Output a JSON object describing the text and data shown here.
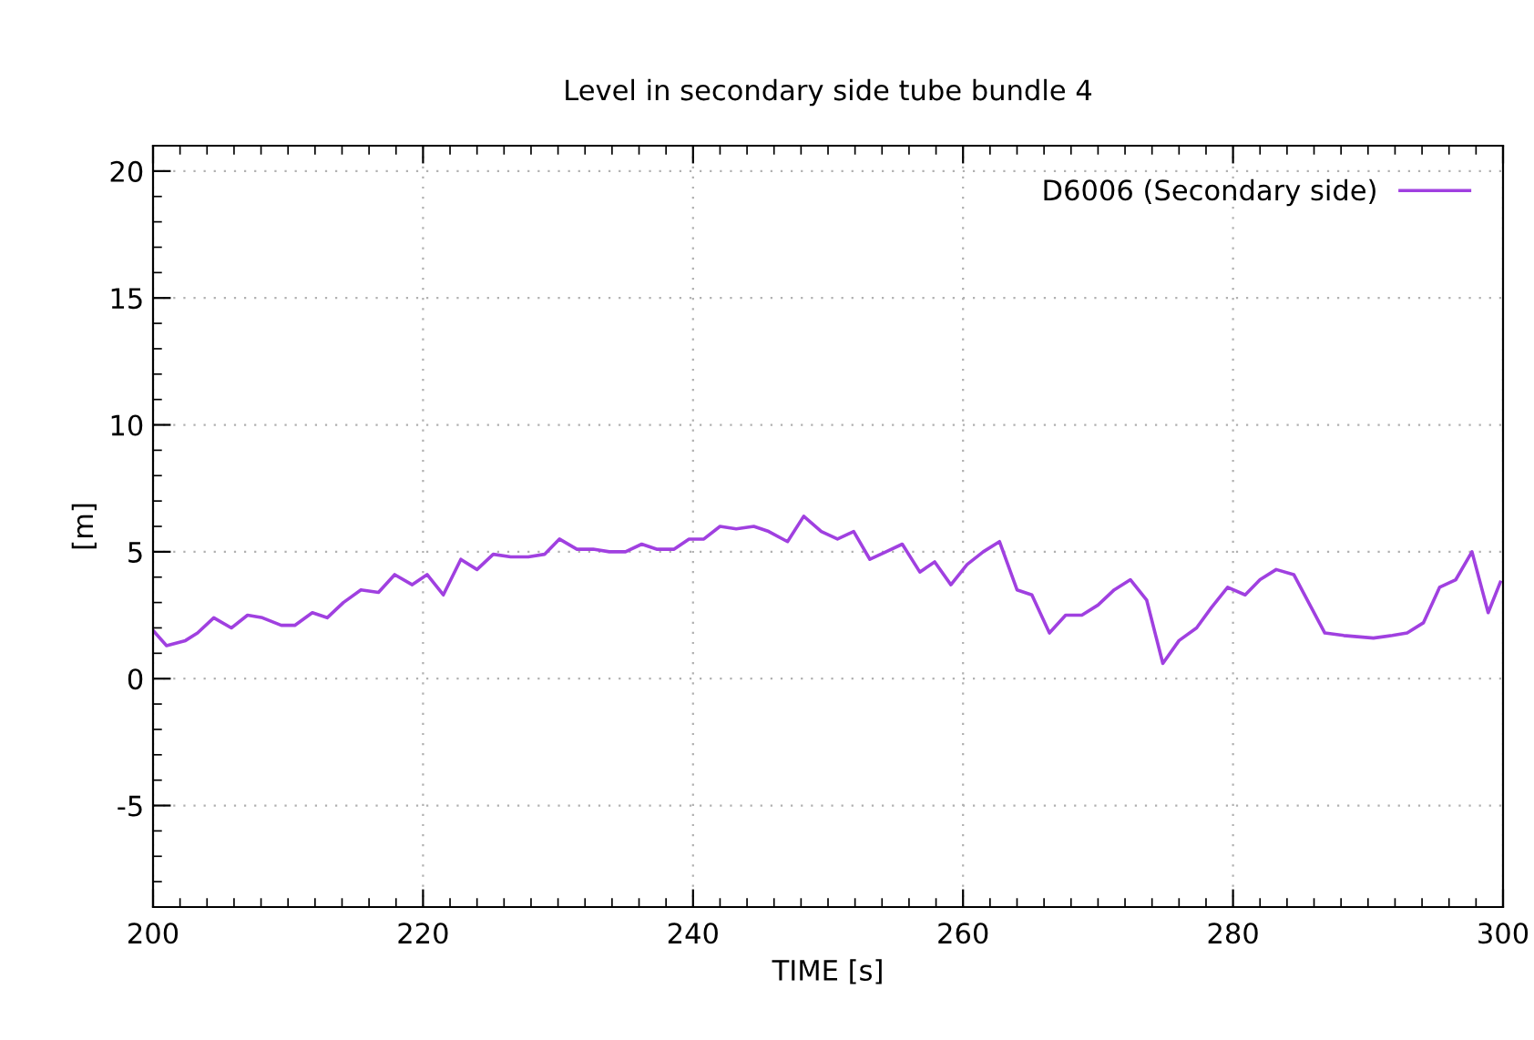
{
  "chart_data": {
    "type": "line",
    "title": "Level in secondary side tube bundle 4",
    "xlabel": "TIME [s]",
    "ylabel": "[m]",
    "xlim": [
      200,
      300
    ],
    "xticks": [
      200,
      220,
      240,
      260,
      280,
      300
    ],
    "ylim": [
      -9,
      21
    ],
    "yticks": [
      -5,
      0,
      5,
      10,
      15,
      20
    ],
    "grid": true,
    "legend": "top right",
    "marker": "none",
    "line_style": "solid",
    "series": [
      {
        "name": "D6006 (Secondary side)",
        "color": "#a040e0",
        "x": [
          200.0,
          201.0,
          202.4,
          203.3,
          204.5,
          205.8,
          207.0,
          208.1,
          209.5,
          210.5,
          211.8,
          212.9,
          214.1,
          215.4,
          216.7,
          217.9,
          219.2,
          220.3,
          221.5,
          222.8,
          224.0,
          225.2,
          226.5,
          227.8,
          229.0,
          230.1,
          231.4,
          232.6,
          233.8,
          235.0,
          236.2,
          237.3,
          238.6,
          239.7,
          240.8,
          242.0,
          243.2,
          244.5,
          245.6,
          247.0,
          248.2,
          249.5,
          250.7,
          251.9,
          253.1,
          254.3,
          255.5,
          256.8,
          257.9,
          259.1,
          260.3,
          261.5,
          262.7,
          264.0,
          265.1,
          266.4,
          267.6,
          268.8,
          270.0,
          271.2,
          272.4,
          273.6,
          274.8,
          276.0,
          277.3,
          278.4,
          279.6,
          280.9,
          282.0,
          283.2,
          284.5,
          285.6,
          286.8,
          288.2,
          290.4,
          291.8,
          292.9,
          294.1,
          295.3,
          296.5,
          297.7,
          298.9,
          299.8
        ],
        "values": [
          1.9,
          1.3,
          1.5,
          1.8,
          2.4,
          2.0,
          2.5,
          2.4,
          2.1,
          2.1,
          2.6,
          2.4,
          3.0,
          3.5,
          3.4,
          4.1,
          3.7,
          4.1,
          3.3,
          4.7,
          4.3,
          4.9,
          4.8,
          4.8,
          4.9,
          5.5,
          5.1,
          5.1,
          5.0,
          5.0,
          5.3,
          5.1,
          5.1,
          5.5,
          5.5,
          6.0,
          5.9,
          6.0,
          5.8,
          5.4,
          6.4,
          5.8,
          5.5,
          5.8,
          4.7,
          5.0,
          5.3,
          4.2,
          4.6,
          3.7,
          4.5,
          5.0,
          5.4,
          3.5,
          3.3,
          1.8,
          2.5,
          2.5,
          2.9,
          3.5,
          3.9,
          3.1,
          0.6,
          1.5,
          2.0,
          2.8,
          3.6,
          3.3,
          3.9,
          4.3,
          4.1,
          3.0,
          1.8,
          1.7,
          1.6,
          1.7,
          1.8,
          2.2,
          3.6,
          3.9,
          5.0,
          2.6,
          3.8
        ]
      }
    ]
  }
}
